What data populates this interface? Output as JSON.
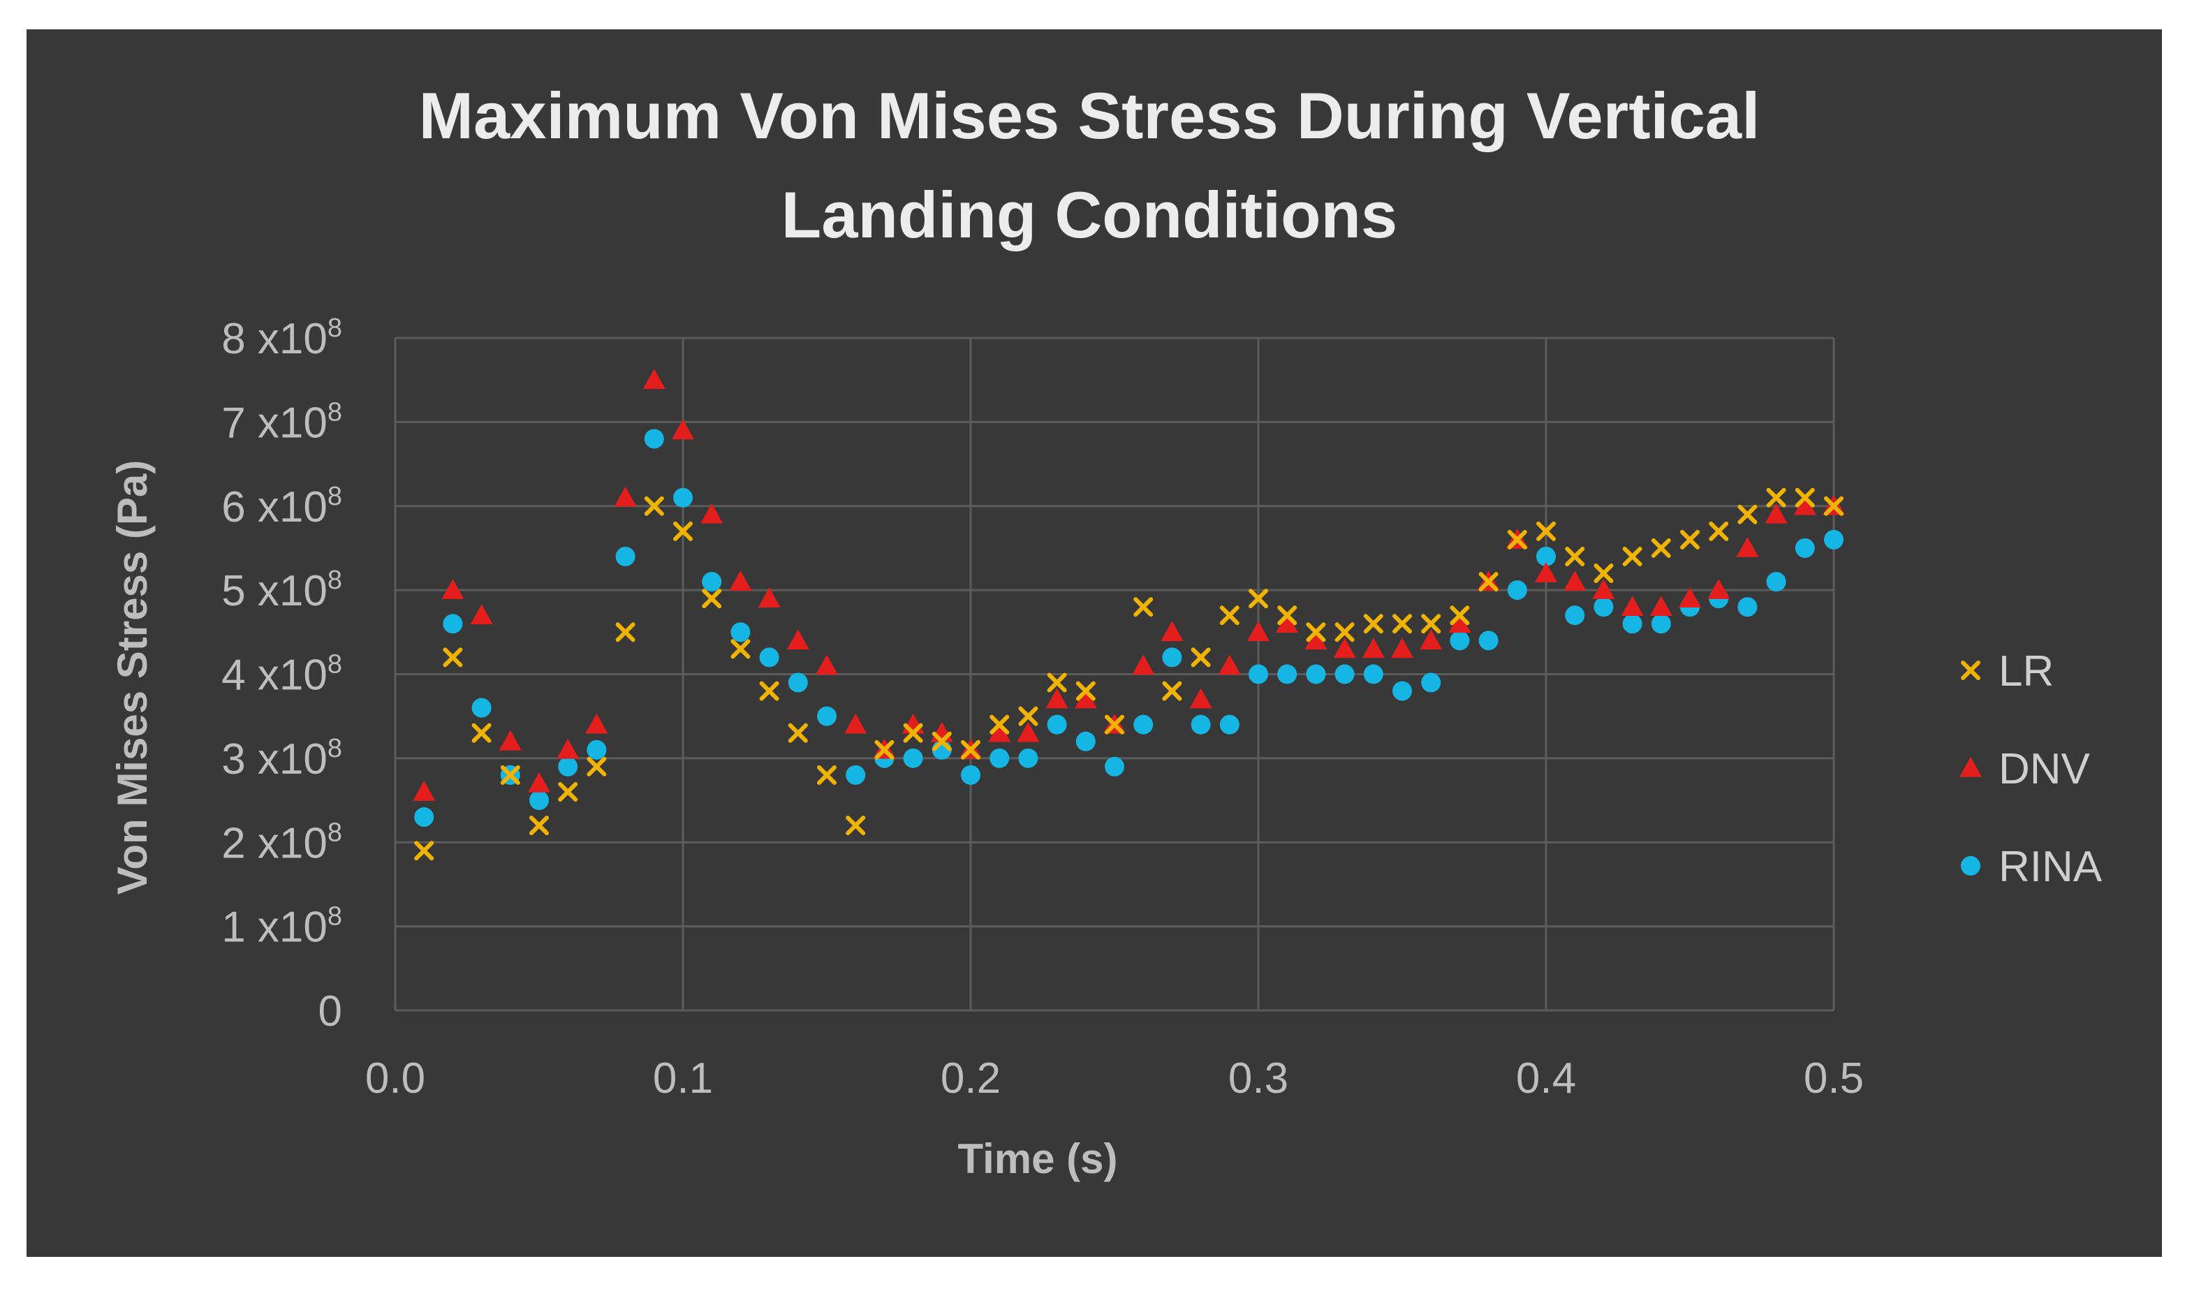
{
  "chart_data": {
    "type": "scatter",
    "title_lines": [
      "Maximum Von Mises Stress During Vertical",
      "Landing Conditions"
    ],
    "xlabel": "Time (s)",
    "ylabel": "Von Mises Stress (Pa)",
    "xlim": [
      0,
      0.5
    ],
    "ylim": [
      0,
      800000000
    ],
    "x_ticks": [
      {
        "value": 0.0,
        "label": "0.0"
      },
      {
        "value": 0.1,
        "label": "0.1"
      },
      {
        "value": 0.2,
        "label": "0.2"
      },
      {
        "value": 0.3,
        "label": "0.3"
      },
      {
        "value": 0.4,
        "label": "0.4"
      },
      {
        "value": 0.5,
        "label": "0.5"
      }
    ],
    "y_ticks": [
      {
        "value": 0,
        "base": "0",
        "exp": ""
      },
      {
        "value": 100000000,
        "base": "1 x10",
        "exp": "8"
      },
      {
        "value": 200000000,
        "base": "2 x10",
        "exp": "8"
      },
      {
        "value": 300000000,
        "base": "3 x10",
        "exp": "8"
      },
      {
        "value": 400000000,
        "base": "4 x10",
        "exp": "8"
      },
      {
        "value": 500000000,
        "base": "5 x10",
        "exp": "8"
      },
      {
        "value": 600000000,
        "base": "6 x10",
        "exp": "8"
      },
      {
        "value": 700000000,
        "base": "7 x10",
        "exp": "8"
      },
      {
        "value": 800000000,
        "base": "8 x10",
        "exp": "8"
      }
    ],
    "grid": true,
    "legend_position": "right",
    "x": [
      0.01,
      0.02,
      0.03,
      0.04,
      0.05,
      0.06,
      0.07,
      0.08,
      0.09,
      0.1,
      0.11,
      0.12,
      0.13,
      0.14,
      0.15,
      0.16,
      0.17,
      0.18,
      0.19,
      0.2,
      0.21,
      0.22,
      0.23,
      0.24,
      0.25,
      0.26,
      0.27,
      0.28,
      0.29,
      0.3,
      0.31,
      0.32,
      0.33,
      0.34,
      0.35,
      0.36,
      0.37,
      0.38,
      0.39,
      0.4,
      0.41,
      0.42,
      0.43,
      0.44,
      0.45,
      0.46,
      0.47,
      0.48,
      0.49,
      0.5
    ],
    "series": [
      {
        "name": "LR",
        "marker": "x",
        "color": "#f0b400",
        "values": [
          190,
          420,
          330,
          280,
          220,
          260,
          290,
          450,
          600,
          570,
          490,
          430,
          380,
          330,
          280,
          220,
          310,
          330,
          320,
          310,
          340,
          350,
          390,
          380,
          340,
          480,
          380,
          420,
          470,
          490,
          470,
          450,
          450,
          460,
          460,
          460,
          470,
          510,
          560,
          570,
          540,
          520,
          540,
          550,
          560,
          570,
          590,
          610,
          610,
          600
        ]
      },
      {
        "name": "DNV",
        "marker": "triangle",
        "color": "#e41d1d",
        "values": [
          260,
          500,
          470,
          320,
          270,
          310,
          340,
          610,
          750,
          690,
          590,
          510,
          490,
          440,
          410,
          340,
          310,
          340,
          330,
          310,
          330,
          330,
          370,
          370,
          340,
          410,
          450,
          370,
          410,
          450,
          460,
          440,
          430,
          430,
          430,
          440,
          460,
          510,
          560,
          520,
          510,
          500,
          480,
          480,
          490,
          500,
          550,
          590,
          600,
          600
        ]
      },
      {
        "name": "RINA",
        "marker": "circle",
        "color": "#16b6e4",
        "values": [
          230,
          460,
          360,
          280,
          250,
          290,
          310,
          540,
          680,
          610,
          510,
          450,
          420,
          390,
          350,
          280,
          300,
          300,
          310,
          280,
          300,
          300,
          340,
          320,
          290,
          340,
          420,
          340,
          340,
          400,
          400,
          400,
          400,
          400,
          380,
          390,
          440,
          440,
          500,
          540,
          470,
          480,
          460,
          460,
          480,
          490,
          480,
          510,
          550,
          560
        ]
      }
    ]
  }
}
